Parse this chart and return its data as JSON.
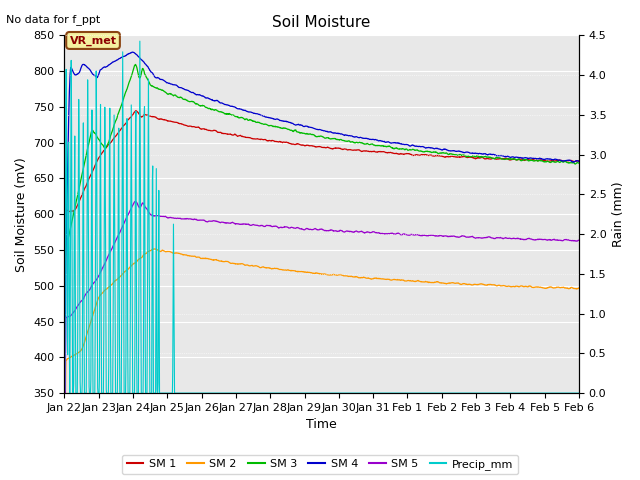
{
  "title": "Soil Moisture",
  "top_left_text": "No data for f_ppt",
  "xlabel": "Time",
  "ylabel_left": "Soil Moisture (mV)",
  "ylabel_right": "Rain (mm)",
  "ylim_left": [
    350,
    850
  ],
  "ylim_right": [
    0.0,
    4.5
  ],
  "yticks_left": [
    350,
    400,
    450,
    500,
    550,
    600,
    650,
    700,
    750,
    800,
    850
  ],
  "yticks_right": [
    0.0,
    0.5,
    1.0,
    1.5,
    2.0,
    2.5,
    3.0,
    3.5,
    4.0,
    4.5
  ],
  "xtick_labels": [
    "Jan 22",
    "Jan 23",
    "Jan 24",
    "Jan 25",
    "Jan 26",
    "Jan 27",
    "Jan 28",
    "Jan 29",
    "Jan 30",
    "Jan 31",
    "Feb 1",
    "Feb 2",
    "Feb 3",
    "Feb 4",
    "Feb 5",
    "Feb 6"
  ],
  "n_days": 16,
  "colors": {
    "SM1": "#cc0000",
    "SM2": "#ff9900",
    "SM3": "#00bb00",
    "SM4": "#0000cc",
    "SM5": "#9900cc",
    "Precip": "#00cccc",
    "background": "#e8e8e8"
  },
  "legend_labels": [
    "SM 1",
    "SM 2",
    "SM 3",
    "SM 4",
    "SM 5",
    "Precip_mm"
  ],
  "vr_met_box": true,
  "figsize": [
    6.4,
    4.8
  ],
  "dpi": 100
}
